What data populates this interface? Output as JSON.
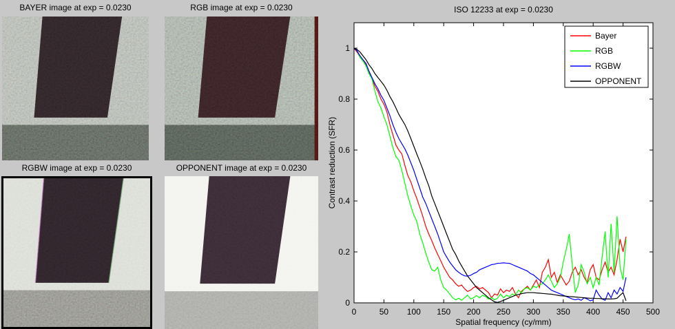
{
  "figure": {
    "background": "#c8c8c8"
  },
  "panels": [
    {
      "id": "bayer",
      "title": "BAYER image at exp = 0.0230",
      "bg": "#a7ada4",
      "rect": "#2a2124",
      "strip": "#565c55"
    },
    {
      "id": "rgb",
      "title": "RGB image at exp = 0.0230",
      "bg": "#99a398",
      "rect": "#321f22",
      "strip": "#4d544d",
      "edge": "#451512"
    },
    {
      "id": "rgbw",
      "title": "RGBW image at exp = 0.0230",
      "bg": "#d7dad2",
      "rect": "#2b2127",
      "strip": "#8a8a83",
      "border": "#000000"
    },
    {
      "id": "opponent",
      "title": "OPPONENT image at exp = 0.0230",
      "bg": "#f2f2ee",
      "rect": "#372933",
      "strip": "#a7a7a3"
    }
  ],
  "chart_data": {
    "type": "line",
    "title": "ISO 12233 at exp = 0.0230",
    "xlabel": "Spatial frequency (cy/mm)",
    "ylabel": "Contrast reduction (SFR)",
    "xlim": [
      0,
      500
    ],
    "ylim": [
      0,
      1.1
    ],
    "xticks": [
      0,
      50,
      100,
      150,
      200,
      250,
      300,
      350,
      400,
      450,
      500
    ],
    "yticks": [
      0,
      0.2,
      0.4,
      0.6,
      0.8,
      1
    ],
    "grid": false,
    "legend_position": "top-right",
    "x": [
      0,
      5,
      10,
      15,
      20,
      25,
      30,
      35,
      40,
      45,
      50,
      55,
      60,
      65,
      70,
      75,
      80,
      85,
      90,
      95,
      100,
      105,
      110,
      115,
      120,
      125,
      130,
      135,
      140,
      145,
      150,
      155,
      160,
      165,
      170,
      175,
      180,
      185,
      190,
      195,
      200,
      205,
      210,
      215,
      220,
      225,
      230,
      235,
      240,
      245,
      250,
      255,
      260,
      265,
      270,
      275,
      280,
      285,
      290,
      295,
      300,
      305,
      310,
      315,
      320,
      325,
      330,
      335,
      340,
      345,
      350,
      355,
      360,
      365,
      370,
      375,
      380,
      385,
      390,
      395,
      400,
      405,
      410,
      415,
      420,
      425,
      430,
      435,
      440,
      445,
      450,
      455
    ],
    "series": [
      {
        "name": "Bayer",
        "color": "#ff0000",
        "values": [
          1.0,
          0.985,
          0.965,
          0.95,
          0.935,
          0.905,
          0.88,
          0.85,
          0.83,
          0.8,
          0.78,
          0.75,
          0.7,
          0.66,
          0.62,
          0.6,
          0.585,
          0.54,
          0.5,
          0.475,
          0.44,
          0.41,
          0.375,
          0.34,
          0.3,
          0.27,
          0.245,
          0.215,
          0.19,
          0.165,
          0.14,
          0.12,
          0.1,
          0.09,
          0.075,
          0.065,
          0.07,
          0.055,
          0.045,
          0.05,
          0.06,
          0.065,
          0.055,
          0.06,
          0.05,
          0.04,
          0.02,
          0.035,
          0.03,
          0.055,
          0.04,
          0.05,
          0.045,
          0.06,
          0.035,
          0.02,
          0.045,
          0.055,
          0.065,
          0.05,
          0.07,
          0.09,
          0.06,
          0.12,
          0.14,
          0.17,
          0.1,
          0.12,
          0.08,
          0.11,
          0.09,
          0.07,
          0.085,
          0.12,
          0.14,
          0.11,
          0.13,
          0.1,
          0.08,
          0.13,
          0.15,
          0.1,
          0.09,
          0.13,
          0.16,
          0.12,
          0.14,
          0.11,
          0.17,
          0.25,
          0.2,
          0.26
        ]
      },
      {
        "name": "RGB",
        "color": "#00ff00",
        "values": [
          1.0,
          0.99,
          0.965,
          0.95,
          0.93,
          0.9,
          0.88,
          0.83,
          0.79,
          0.765,
          0.73,
          0.7,
          0.655,
          0.61,
          0.575,
          0.56,
          0.52,
          0.47,
          0.42,
          0.38,
          0.345,
          0.32,
          0.27,
          0.235,
          0.195,
          0.16,
          0.13,
          0.125,
          0.14,
          0.09,
          0.06,
          0.05,
          0.035,
          0.02,
          0.012,
          0.018,
          0.01,
          0.02,
          0.03,
          0.015,
          0.02,
          0.028,
          0.02,
          0.03,
          0.025,
          0.015,
          0.02,
          0.012,
          0.018,
          0.035,
          0.02,
          0.03,
          0.025,
          0.035,
          0.03,
          0.05,
          0.04,
          0.055,
          0.06,
          0.05,
          0.065,
          0.06,
          0.07,
          0.075,
          0.09,
          0.11,
          0.085,
          0.06,
          0.075,
          0.1,
          0.16,
          0.21,
          0.27,
          0.15,
          0.04,
          0.07,
          0.15,
          0.12,
          0.075,
          0.1,
          0.06,
          0.1,
          0.07,
          0.18,
          0.28,
          0.1,
          0.31,
          0.12,
          0.34,
          0.14,
          0.09,
          0.25
        ]
      },
      {
        "name": "RGBW",
        "color": "#0000ff",
        "values": [
          1.0,
          0.99,
          0.97,
          0.955,
          0.94,
          0.91,
          0.885,
          0.86,
          0.84,
          0.815,
          0.795,
          0.765,
          0.735,
          0.7,
          0.67,
          0.645,
          0.625,
          0.605,
          0.58,
          0.55,
          0.52,
          0.485,
          0.45,
          0.415,
          0.39,
          0.36,
          0.33,
          0.3,
          0.27,
          0.235,
          0.2,
          0.18,
          0.16,
          0.145,
          0.13,
          0.12,
          0.112,
          0.106,
          0.105,
          0.108,
          0.115,
          0.12,
          0.13,
          0.135,
          0.14,
          0.145,
          0.15,
          0.152,
          0.155,
          0.156,
          0.157,
          0.156,
          0.155,
          0.15,
          0.145,
          0.14,
          0.135,
          0.13,
          0.125,
          0.115,
          0.11,
          0.1,
          0.09,
          0.08,
          0.07,
          0.06,
          0.05,
          0.045,
          0.04,
          0.035,
          0.03,
          0.025,
          0.02,
          0.015,
          0.012,
          0.015,
          0.01,
          0.02,
          0.015,
          0.008,
          0.012,
          0.05,
          0.03,
          0.015,
          0.01,
          0.04,
          0.02,
          0.05,
          0.035,
          0.06,
          0.045,
          0.1
        ]
      },
      {
        "name": "OPPONENT",
        "color": "#000000",
        "values": [
          1.0,
          0.995,
          0.985,
          0.97,
          0.955,
          0.935,
          0.92,
          0.9,
          0.885,
          0.87,
          0.855,
          0.835,
          0.81,
          0.79,
          0.765,
          0.74,
          0.72,
          0.7,
          0.675,
          0.645,
          0.615,
          0.585,
          0.555,
          0.525,
          0.49,
          0.46,
          0.42,
          0.39,
          0.36,
          0.33,
          0.3,
          0.27,
          0.24,
          0.21,
          0.19,
          0.165,
          0.145,
          0.125,
          0.105,
          0.09,
          0.075,
          0.06,
          0.05,
          0.04,
          0.03,
          0.02,
          0.012,
          0.004,
          0.002,
          0.005,
          0.01,
          0.015,
          0.02,
          0.025,
          0.03,
          0.033,
          0.036,
          0.038,
          0.04,
          0.04,
          0.04,
          0.039,
          0.038,
          0.037,
          0.036,
          0.035,
          0.034,
          0.032,
          0.03,
          0.028,
          0.027,
          0.026,
          0.025,
          0.024,
          0.023,
          0.022,
          0.021,
          0.02,
          0.019,
          0.018,
          0.018,
          0.017,
          0.017,
          0.016,
          0.016,
          0.015,
          0.015,
          0.016,
          0.018,
          0.03,
          0.04,
          0.008
        ]
      }
    ]
  }
}
